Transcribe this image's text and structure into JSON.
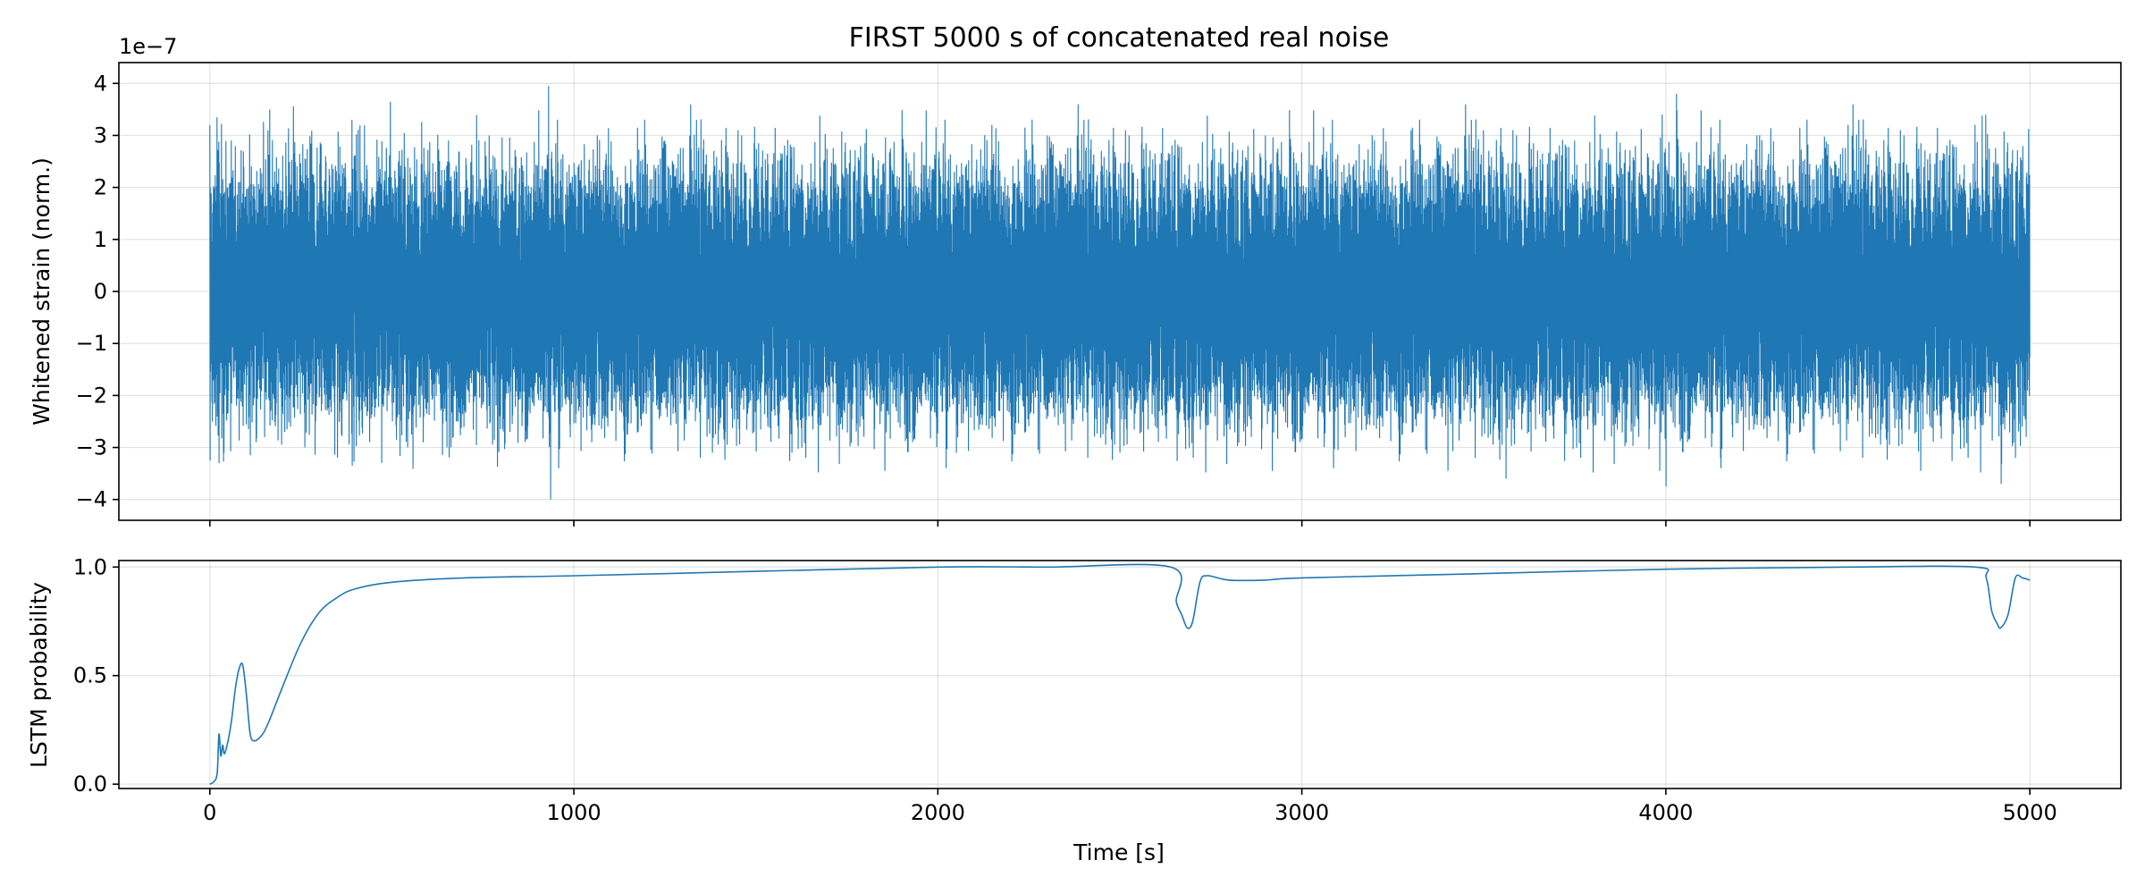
{
  "chart_data": [
    {
      "type": "line",
      "title": "FIRST 5000 s of concatenated real noise",
      "ylabel": "Whitened strain (norm.)",
      "y_offset_text": "1e−7",
      "xlim": [
        -250,
        5250
      ],
      "ylim": [
        -4.4,
        4.4
      ],
      "x_ticks": [
        0,
        1000,
        2000,
        3000,
        4000,
        5000
      ],
      "y_ticks": [
        -4,
        -3,
        -2,
        -1,
        0,
        1,
        2,
        3,
        4
      ],
      "y_tick_labels": [
        "−4",
        "−3",
        "−2",
        "−1",
        "0",
        "1",
        "2",
        "3",
        "4"
      ],
      "grid": true,
      "color": "#1f77b4",
      "series": [
        {
          "envelope_sigma": 0.75,
          "x_range": [
            0,
            5000
          ],
          "peaks": [
            {
              "x": 0,
              "y": 3.2
            },
            {
              "x": 0,
              "y": -3.25
            },
            {
              "x": 20,
              "y": 3.35
            },
            {
              "x": 25,
              "y": -3.3
            },
            {
              "x": 60,
              "y": 2.9
            },
            {
              "x": 110,
              "y": -3.15
            },
            {
              "x": 160,
              "y": 3.1
            },
            {
              "x": 260,
              "y": -3.0
            },
            {
              "x": 390,
              "y": 3.3
            },
            {
              "x": 390,
              "y": -3.35
            },
            {
              "x": 520,
              "y": 2.7
            },
            {
              "x": 650,
              "y": -3.0
            },
            {
              "x": 930,
              "y": 3.95
            },
            {
              "x": 935,
              "y": -4.0
            },
            {
              "x": 1050,
              "y": -2.9
            },
            {
              "x": 1250,
              "y": 2.9
            },
            {
              "x": 1380,
              "y": -3.1
            },
            {
              "x": 1600,
              "y": -3.1
            },
            {
              "x": 1800,
              "y": 2.85
            },
            {
              "x": 2050,
              "y": -3.1
            },
            {
              "x": 2150,
              "y": 3.2
            },
            {
              "x": 2300,
              "y": 3.0
            },
            {
              "x": 2500,
              "y": -3.1
            },
            {
              "x": 2900,
              "y": 3.0
            },
            {
              "x": 3100,
              "y": -3.05
            },
            {
              "x": 3300,
              "y": 3.1
            },
            {
              "x": 3400,
              "y": -3.45
            },
            {
              "x": 3500,
              "y": 3.1
            },
            {
              "x": 3560,
              "y": -3.6
            },
            {
              "x": 3750,
              "y": 2.9
            },
            {
              "x": 3990,
              "y": 3.4
            },
            {
              "x": 4000,
              "y": -3.75
            },
            {
              "x": 4030,
              "y": 3.8
            },
            {
              "x": 4150,
              "y": -3.2
            },
            {
              "x": 4250,
              "y": 3.0
            },
            {
              "x": 4500,
              "y": 3.2
            },
            {
              "x": 4700,
              "y": -3.45
            },
            {
              "x": 4850,
              "y": 3.2
            },
            {
              "x": 4880,
              "y": 3.4
            },
            {
              "x": 4920,
              "y": -3.7
            },
            {
              "x": 4960,
              "y": -3.2
            }
          ]
        }
      ]
    },
    {
      "type": "line",
      "xlabel": "Time [s]",
      "ylabel": "LSTM probability",
      "xlim": [
        -250,
        5250
      ],
      "ylim": [
        -0.02,
        1.03
      ],
      "x_ticks": [
        0,
        1000,
        2000,
        3000,
        4000,
        5000
      ],
      "y_ticks": [
        0.0,
        0.5,
        1.0
      ],
      "y_tick_labels": [
        "0.0",
        "0.5",
        "1.0"
      ],
      "grid": true,
      "color": "#1f77b4",
      "series": [
        {
          "x": [
            0,
            10,
            20,
            25,
            30,
            35,
            40,
            50,
            60,
            70,
            80,
            90,
            100,
            110,
            120,
            140,
            160,
            200,
            250,
            300,
            350,
            400,
            500,
            700,
            1000,
            1500,
            2000,
            2300,
            2640,
            2655,
            2670,
            2685,
            2700,
            2720,
            2740,
            2800,
            2900,
            3000,
            3500,
            4000,
            4500,
            4850,
            4880,
            4895,
            4910,
            4920,
            4940,
            4960,
            4980,
            5000
          ],
          "y": [
            0.0,
            0.01,
            0.05,
            0.23,
            0.13,
            0.18,
            0.14,
            0.2,
            0.3,
            0.44,
            0.53,
            0.55,
            0.42,
            0.24,
            0.2,
            0.22,
            0.28,
            0.45,
            0.65,
            0.79,
            0.86,
            0.9,
            0.93,
            0.95,
            0.96,
            0.98,
            1.0,
            1.0,
            1.0,
            0.84,
            0.78,
            0.72,
            0.75,
            0.93,
            0.96,
            0.94,
            0.94,
            0.95,
            0.97,
            0.99,
            1.0,
            1.0,
            0.95,
            0.8,
            0.74,
            0.72,
            0.78,
            0.95,
            0.95,
            0.94
          ]
        }
      ]
    }
  ]
}
